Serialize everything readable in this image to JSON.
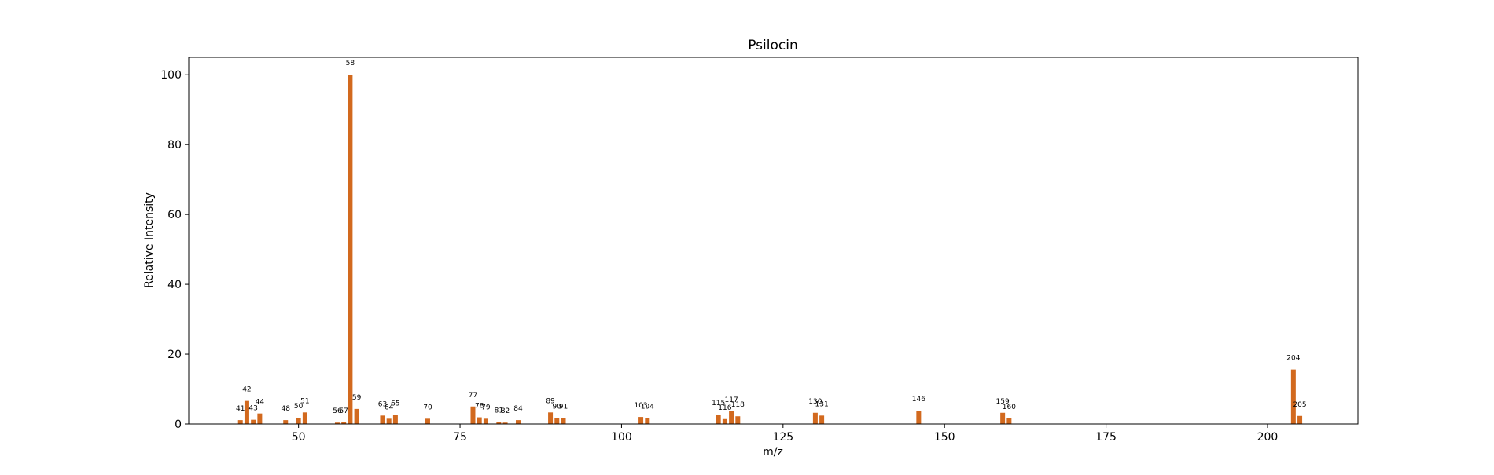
{
  "chart_data": {
    "type": "bar",
    "title": "Psilocin",
    "xlabel": "m/z",
    "ylabel": "Relative Intensity",
    "xlim": [
      33,
      214
    ],
    "ylim": [
      0,
      105
    ],
    "xticks": [
      50,
      75,
      100,
      125,
      150,
      175,
      200
    ],
    "yticks": [
      0,
      20,
      40,
      60,
      80,
      100
    ],
    "grid": false,
    "legend": false,
    "bar_color": "#d2691e",
    "series": [
      {
        "x": [
          41,
          42,
          43,
          44,
          48,
          50,
          51,
          56,
          57,
          58,
          59,
          63,
          64,
          65,
          70,
          77,
          78,
          79,
          81,
          82,
          84,
          89,
          90,
          91,
          103,
          104,
          115,
          116,
          117,
          118,
          130,
          131,
          146,
          159,
          160,
          204,
          205
        ],
        "values": [
          1.1,
          6.6,
          1.2,
          3.0,
          1.1,
          1.8,
          3.3,
          0.4,
          0.5,
          100,
          4.3,
          2.4,
          1.5,
          2.6,
          1.5,
          5.0,
          1.9,
          1.5,
          0.6,
          0.4,
          1.1,
          3.3,
          1.7,
          1.7,
          2.0,
          1.7,
          2.7,
          1.4,
          3.6,
          2.2,
          3.2,
          2.4,
          3.8,
          3.2,
          1.6,
          15.6,
          2.3
        ]
      }
    ]
  }
}
